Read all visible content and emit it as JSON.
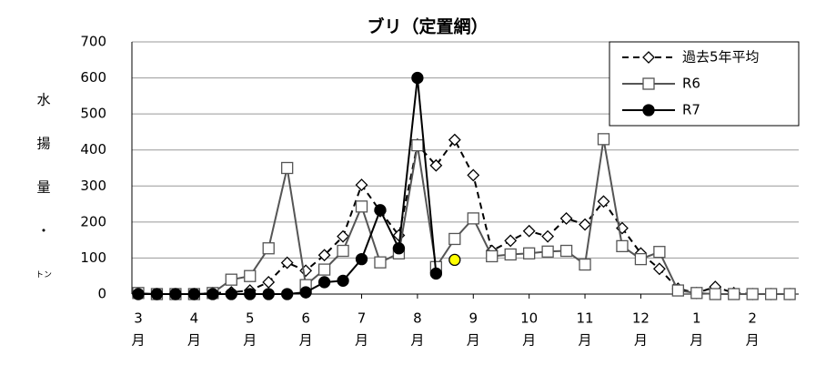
{
  "chart_data": {
    "type": "line",
    "title": "ブリ（定置網）",
    "ylabel": [
      "水",
      "揚",
      "量",
      "・",
      "トン"
    ],
    "x_unit": "月",
    "categories": [
      "3",
      null,
      null,
      "4",
      null,
      null,
      "5",
      null,
      null,
      "6",
      null,
      null,
      "7",
      null,
      null,
      "8",
      null,
      null,
      "9",
      null,
      null,
      "10",
      null,
      null,
      "11",
      null,
      null,
      "12",
      null,
      null,
      "1",
      null,
      null,
      "2",
      null,
      null
    ],
    "ylim": [
      0,
      700
    ],
    "yticks": [
      0,
      100,
      200,
      300,
      400,
      500,
      600,
      700
    ],
    "grid": true,
    "legend": "upper right",
    "series": [
      {
        "name": "過去5年平均",
        "color": "#000000",
        "dash": true,
        "marker": "diamond",
        "marker_fill": "#ffffff",
        "values": [
          0,
          0,
          0,
          0,
          3,
          5,
          10,
          33,
          87,
          65,
          108,
          160,
          303,
          230,
          163,
          415,
          357,
          428,
          330,
          120,
          148,
          175,
          160,
          210,
          193,
          257,
          183,
          113,
          70,
          15,
          3,
          20,
          3,
          0,
          0,
          0
        ]
      },
      {
        "name": "R6",
        "color": "#555555",
        "dash": false,
        "marker": "square",
        "marker_fill": "#ffffff",
        "values": [
          3,
          0,
          0,
          0,
          3,
          40,
          50,
          127,
          350,
          25,
          68,
          120,
          243,
          88,
          113,
          413,
          75,
          153,
          210,
          105,
          110,
          113,
          118,
          120,
          82,
          430,
          133,
          97,
          117,
          10,
          3,
          0,
          0,
          0,
          0,
          0
        ]
      },
      {
        "name": "R7",
        "color": "#000000",
        "dash": false,
        "marker": "circle",
        "marker_fill": "#000000",
        "last_color": "#ffff00",
        "values": [
          0,
          0,
          0,
          0,
          0,
          0,
          0,
          0,
          0,
          5,
          33,
          37,
          97,
          233,
          127,
          600,
          57,
          95,
          null,
          null,
          null,
          null,
          null,
          null,
          null,
          null,
          null,
          null,
          null,
          null,
          null,
          null,
          null,
          null,
          null,
          null
        ]
      }
    ]
  }
}
